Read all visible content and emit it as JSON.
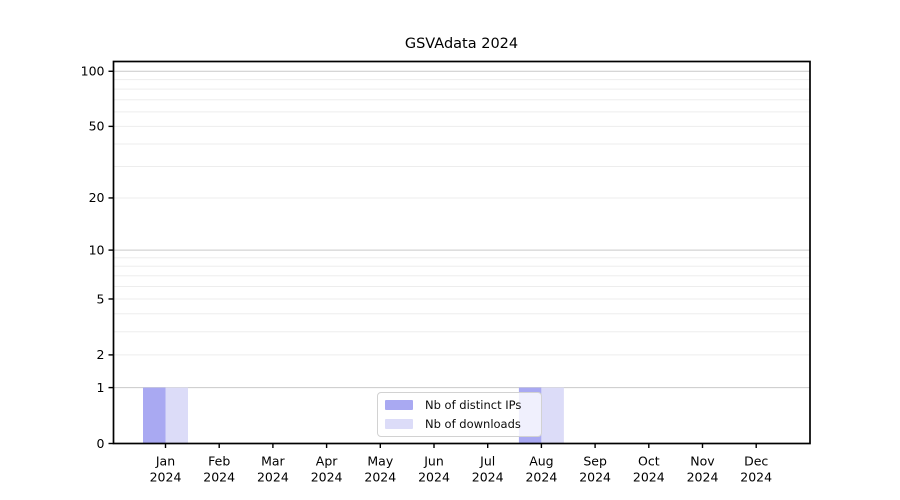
{
  "figure": {
    "background": "#ffffff"
  },
  "chart_data": {
    "type": "bar",
    "title": "GSVAdata 2024",
    "x_months": [
      "Jan",
      "Feb",
      "Mar",
      "Apr",
      "May",
      "Jun",
      "Jul",
      "Aug",
      "Sep",
      "Oct",
      "Nov",
      "Dec"
    ],
    "x_year": "2024",
    "series": [
      {
        "name": "Nb of distinct IPs",
        "color": "#a9a9f2",
        "values": [
          1,
          0,
          0,
          0,
          0,
          0,
          0,
          1,
          0,
          0,
          0,
          0
        ]
      },
      {
        "name": "Nb of downloads",
        "color": "#dcdcf8",
        "values": [
          1,
          0,
          0,
          0,
          0,
          0,
          0,
          1,
          0,
          0,
          0,
          0
        ]
      }
    ],
    "yticks": [
      0,
      1,
      2,
      5,
      10,
      20,
      50,
      100
    ],
    "ylim": [
      0,
      113
    ],
    "yscale": "symlog-log1p",
    "grid": {
      "on": true,
      "major_color": "#c9c9c9",
      "minor_color": "#ededed"
    },
    "axis_color": "#000000",
    "tick_label_color": "#000000",
    "legend": {
      "position": "lower center",
      "border_color": "#d2d2d2"
    }
  }
}
